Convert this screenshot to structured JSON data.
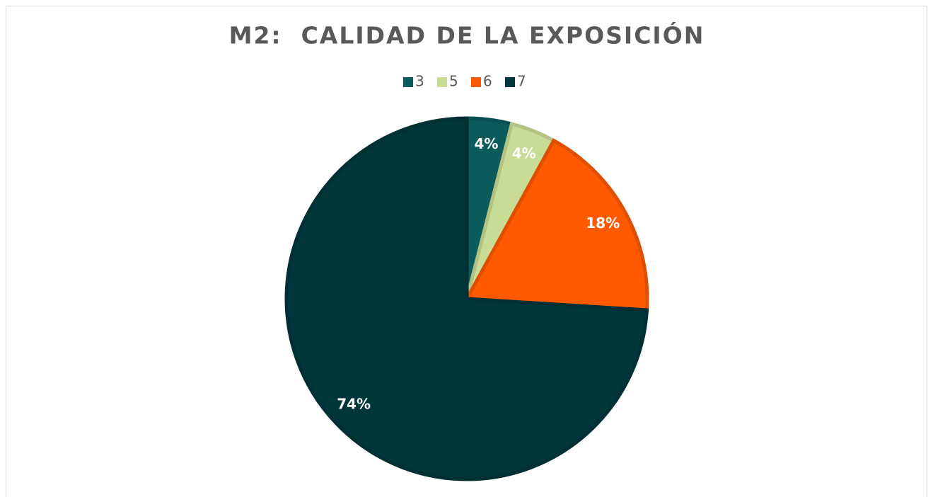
{
  "chart_data": {
    "type": "pie",
    "title": "M2:  CALIDAD DE LA EXPOSICIÓN",
    "categories": [
      "3",
      "5",
      "6",
      "7"
    ],
    "values": [
      4,
      4,
      18,
      74
    ],
    "value_labels": [
      "4%",
      "4%",
      "18%",
      "74%"
    ],
    "colors": [
      "#0b5a5c",
      "#c9dc95",
      "#ff5a00",
      "#00363a"
    ],
    "legend": "top"
  }
}
